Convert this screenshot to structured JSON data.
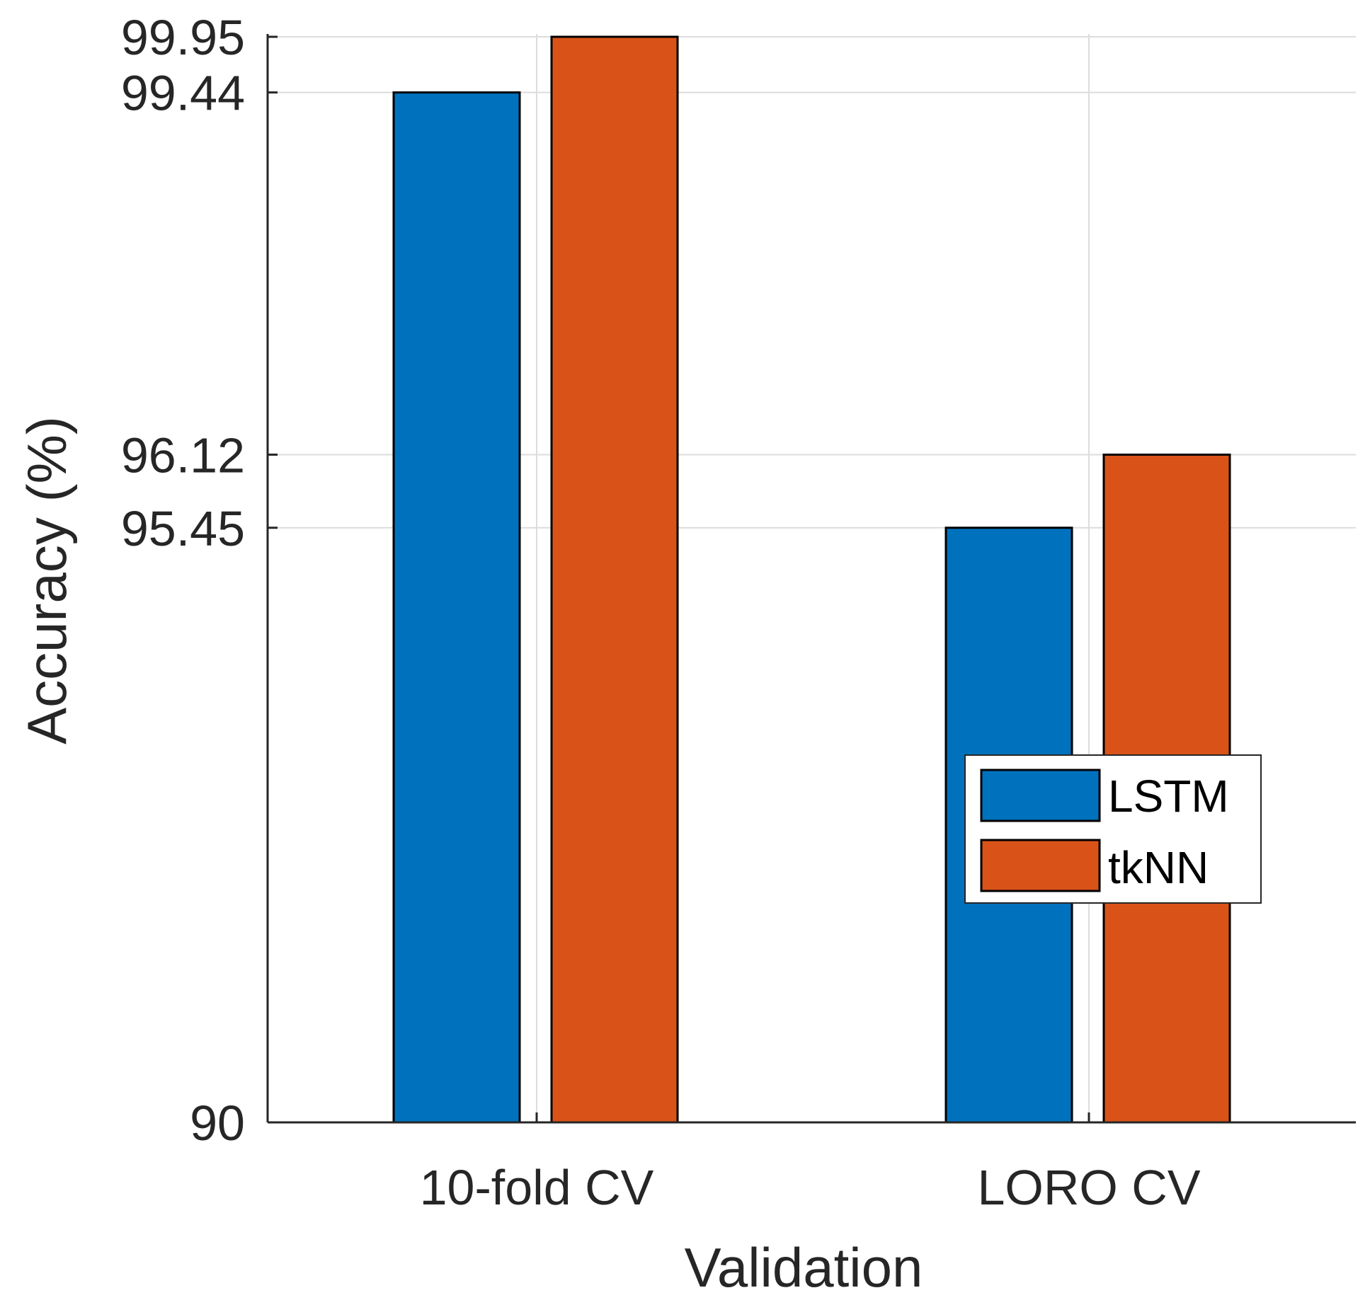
{
  "chart_data": {
    "type": "bar",
    "title": "",
    "xlabel": "Validation",
    "ylabel": "Accuracy (%)",
    "categories": [
      "10-fold CV",
      "LORO CV"
    ],
    "series": [
      {
        "name": "LSTM",
        "color": "#0072BD",
        "values": [
          99.44,
          95.45
        ]
      },
      {
        "name": "tkNN",
        "color": "#D95319",
        "values": [
          99.95,
          96.12
        ]
      }
    ],
    "ylim": [
      90,
      99.95
    ],
    "yticks": [
      90,
      95.45,
      96.12,
      99.44,
      99.95
    ],
    "ytick_labels": [
      "90",
      "95.45",
      "96.12",
      "99.44",
      "99.95"
    ],
    "grid": true,
    "legend_position": "right"
  }
}
